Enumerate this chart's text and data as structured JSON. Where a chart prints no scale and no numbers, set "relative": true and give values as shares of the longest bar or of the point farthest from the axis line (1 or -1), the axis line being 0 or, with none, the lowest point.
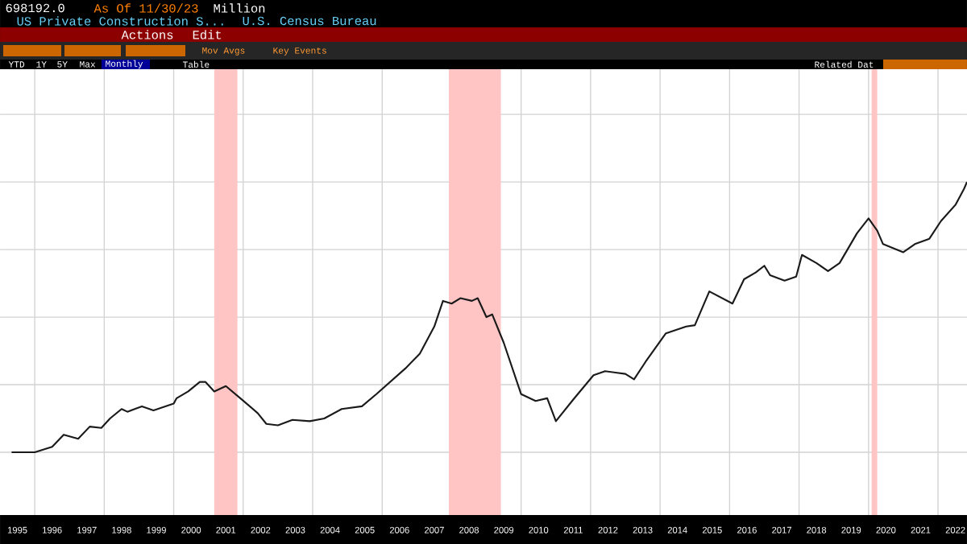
{
  "chart_data": {
    "type": "line",
    "title": "US Private Construction S...",
    "subtitle": "U.S. Census Bureau",
    "annotations": [
      "698192.0",
      "As Of 11/30/23",
      "Million",
      "Actions",
      "Edit",
      "Mov Avgs",
      "Key Events",
      "YTD",
      "1Y",
      "5Y",
      "Max",
      "Monthly",
      "Table",
      "Related Dat"
    ],
    "relative": true,
    "x": [
      "1995-05",
      "1996-01",
      "1996-07",
      "1996-11",
      "1997-04",
      "1997-08",
      "1997-12",
      "1998-03",
      "1998-07",
      "1998-09",
      "1999-02",
      "1999-06",
      "2000-01",
      "2000-02",
      "2000-06",
      "2000-10",
      "2000-12",
      "2001-03",
      "2001-07",
      "2001-12",
      "2002-06",
      "2002-09",
      "2003-01",
      "2003-06",
      "2003-12",
      "2004-05",
      "2004-11",
      "2005-06",
      "2005-11",
      "2006-09",
      "2007-02",
      "2007-07",
      "2007-10",
      "2008-01",
      "2008-04",
      "2008-08",
      "2008-10",
      "2009-01",
      "2009-03",
      "2009-07",
      "2010-01",
      "2010-06",
      "2010-10",
      "2011-01",
      "2011-07",
      "2012-02",
      "2012-06",
      "2013-01",
      "2013-04",
      "2013-08",
      "2014-03",
      "2014-10",
      "2015-01",
      "2015-06",
      "2016-02",
      "2016-06",
      "2016-10",
      "2017-01",
      "2017-03",
      "2017-08",
      "2017-12",
      "2018-02",
      "2018-07",
      "2018-11",
      "2019-03",
      "2019-09",
      "2020-01",
      "2020-04",
      "2020-06",
      "2021-01",
      "2021-05",
      "2021-10",
      "2022-02",
      "2022-07",
      "2022-10",
      "2022-11"
    ],
    "series": [
      {
        "color": "#1a1a1a",
        "values": [
          0,
          0,
          0.02,
          0.065,
          0.05,
          0.095,
          0.09,
          0.125,
          0.16,
          0.15,
          0.17,
          0.155,
          0.18,
          0.2,
          0.225,
          0.26,
          0.26,
          0.225,
          0.245,
          0.2,
          0.145,
          0.105,
          0.1,
          0.12,
          0.115,
          0.125,
          0.16,
          0.17,
          0.215,
          0.31,
          0.365,
          0.465,
          0.56,
          0.55,
          0.57,
          0.56,
          0.57,
          0.5,
          0.51,
          0.405,
          0.215,
          0.19,
          0.2,
          0.115,
          0.195,
          0.285,
          0.3,
          0.29,
          0.27,
          0.335,
          0.44,
          0.465,
          0.47,
          0.595,
          0.55,
          0.64,
          0.665,
          0.69,
          0.655,
          0.635,
          0.65,
          0.73,
          0.7,
          0.67,
          0.7,
          0.81,
          0.865,
          0.82,
          0.77,
          0.74,
          0.77,
          0.79,
          0.855,
          0.915,
          0.975,
          1
        ]
      }
    ],
    "xlim": [
      "1995-01",
      "2022-11"
    ],
    "xticks": [
      {
        "value": "1995-07",
        "label": "1995"
      },
      {
        "value": "1996-07",
        "label": "1996"
      },
      {
        "value": "1997-07",
        "label": "1997"
      },
      {
        "value": "1998-07",
        "label": "1998"
      },
      {
        "value": "1999-07",
        "label": "1999"
      },
      {
        "value": "2000-07",
        "label": "2000"
      },
      {
        "value": "2001-07",
        "label": "2001"
      },
      {
        "value": "2002-07",
        "label": "2002"
      },
      {
        "value": "2003-07",
        "label": "2003"
      },
      {
        "value": "2004-07",
        "label": "2004"
      },
      {
        "value": "2005-07",
        "label": "2005"
      },
      {
        "value": "2006-07",
        "label": "2006"
      },
      {
        "value": "2007-07",
        "label": "2007"
      },
      {
        "value": "2008-07",
        "label": "2008"
      },
      {
        "value": "2009-07",
        "label": "2009"
      },
      {
        "value": "2010-07",
        "label": "2010"
      },
      {
        "value": "2011-07",
        "label": "2011"
      },
      {
        "value": "2012-07",
        "label": "2012"
      },
      {
        "value": "2013-07",
        "label": "2013"
      },
      {
        "value": "2014-07",
        "label": "2014"
      },
      {
        "value": "2015-07",
        "label": "2015"
      },
      {
        "value": "2016-07",
        "label": "2016"
      },
      {
        "value": "2017-07",
        "label": "2017"
      },
      {
        "value": "2018-07",
        "label": "2018"
      },
      {
        "value": "2019-07",
        "label": "2019"
      },
      {
        "value": "2020-07",
        "label": "2020"
      },
      {
        "value": "2021-07",
        "label": "2021"
      },
      {
        "value": "2022-07",
        "label": "2022"
      },
      {
        "value": "1996-01",
        "label": null
      },
      {
        "value": "1998-01",
        "label": null
      },
      {
        "value": "2000-01",
        "label": null
      },
      {
        "value": "2002-01",
        "label": null
      },
      {
        "value": "2004-01",
        "label": null
      },
      {
        "value": "2006-01",
        "label": null
      },
      {
        "value": "2008-01",
        "label": null
      },
      {
        "value": "2010-01",
        "label": null
      },
      {
        "value": "2012-01",
        "label": null
      },
      {
        "value": "2014-01",
        "label": null
      },
      {
        "value": "2016-01",
        "label": null
      },
      {
        "value": "2018-01",
        "label": null
      },
      {
        "value": "2020-01",
        "label": null
      },
      {
        "value": "2022-01",
        "label": null
      }
    ],
    "bands": [
      {
        "axis": "x",
        "from": "2001-03",
        "to": "2001-11",
        "color": "#ffc4c4"
      },
      {
        "axis": "x",
        "from": "2007-12",
        "to": "2009-06",
        "color": "#ffc4c4"
      },
      {
        "axis": "x",
        "from": "2020-02",
        "to": "2020-04",
        "color": "#ffc4c4"
      }
    ],
    "grid": true,
    "marker": "none",
    "line_style": "solid"
  }
}
